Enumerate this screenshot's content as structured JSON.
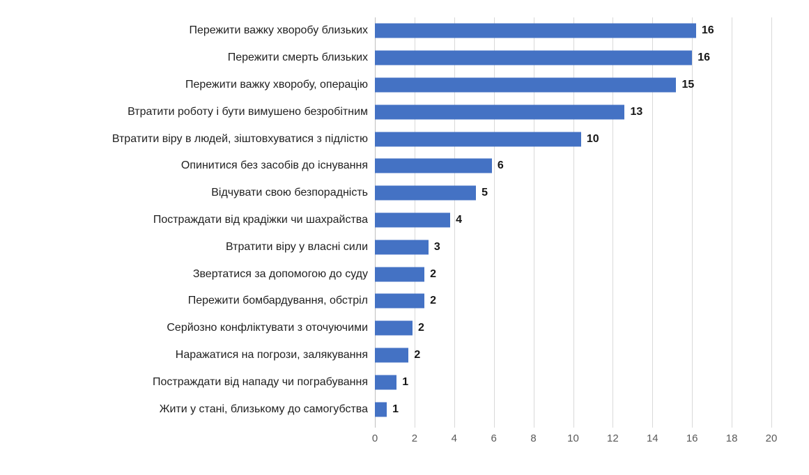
{
  "chart_data": {
    "type": "bar",
    "orientation": "horizontal",
    "title": "",
    "xlabel": "",
    "ylabel": "",
    "xlim": [
      0,
      20
    ],
    "x_ticks": [
      0,
      2,
      4,
      6,
      8,
      10,
      12,
      14,
      16,
      18,
      20
    ],
    "grid": true,
    "legend": "none",
    "categories": [
      "Пережити важку хворобу близьких",
      "Пережити смерть близьких",
      "Пережити важку хворобу, операцію",
      "Втратити роботу і бути вимушено безробітним",
      "Втратити віру в людей, зіштовхуватися з підлістю",
      "Опинитися без засобів до існування",
      "Відчувати свою безпорадність",
      "Постраждати від крадіжки чи шахрайства",
      "Втратити віру у власні сили",
      "Звертатися за допомогою до суду",
      "Пережити бомбардування, обстріл",
      "Серйозно конфліктувати з оточуючими",
      "Наражатися на погрози, залякування",
      "Постраждати від нападу чи пограбування",
      "Жити у стані, близькому до самогубства"
    ],
    "values": [
      16,
      16,
      15,
      13,
      10,
      6,
      5,
      4,
      3,
      2,
      2,
      2,
      2,
      1,
      1
    ],
    "bar_values": [
      16.2,
      16.0,
      15.2,
      12.6,
      10.4,
      5.9,
      5.1,
      3.8,
      2.7,
      2.5,
      2.5,
      1.9,
      1.7,
      1.1,
      0.6
    ],
    "colors": {
      "bar": "#4472C4",
      "gridline": "#D9D9D9",
      "zero_axis_line": "#BFBFBF",
      "tick_label": "#595959",
      "category_label": "#1F1F1F",
      "data_label": "#171717",
      "background": "#FFFFFF"
    }
  }
}
